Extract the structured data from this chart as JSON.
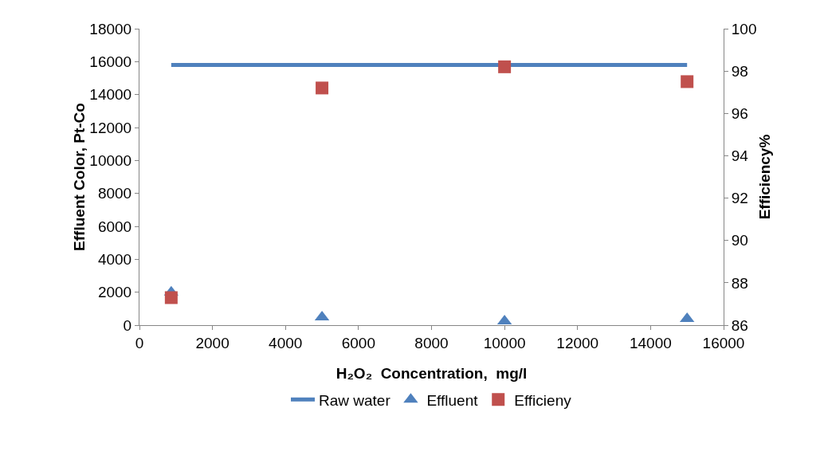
{
  "chart_data": {
    "type": "scatter",
    "xlabel": "H₂O₂  Concentration,  mg/l",
    "ylabel": "Effluent Color, Pt-Co",
    "y2label": "Efficiency%",
    "xlim": [
      0,
      16000
    ],
    "xticks": [
      0,
      2000,
      4000,
      6000,
      8000,
      10000,
      12000,
      14000,
      16000
    ],
    "ylim": [
      0,
      18000
    ],
    "yticks": [
      0,
      2000,
      4000,
      6000,
      8000,
      10000,
      12000,
      14000,
      16000,
      18000
    ],
    "y2lim": [
      86,
      100
    ],
    "y2ticks": [
      86,
      88,
      90,
      92,
      94,
      96,
      98,
      100
    ],
    "grid": false,
    "legend": "bottom",
    "series": [
      {
        "name": "Raw water",
        "type": "line",
        "marker": "none",
        "line_style": "solid",
        "color": "#4f81bd",
        "x": [
          870,
          15000
        ],
        "values": [
          15800,
          15800
        ]
      },
      {
        "name": "Effluent",
        "marker": "triangle",
        "color": "#4f81bd",
        "x": [
          870,
          5000,
          10000,
          15000
        ],
        "values": [
          2000,
          480,
          240,
          390
        ]
      },
      {
        "name": "Efficieny",
        "marker": "square",
        "color": "#c0504d",
        "axis": "y2",
        "x": [
          870,
          5000,
          10000,
          15000
        ],
        "values": [
          87.3,
          97.2,
          98.2,
          97.5
        ]
      }
    ]
  }
}
